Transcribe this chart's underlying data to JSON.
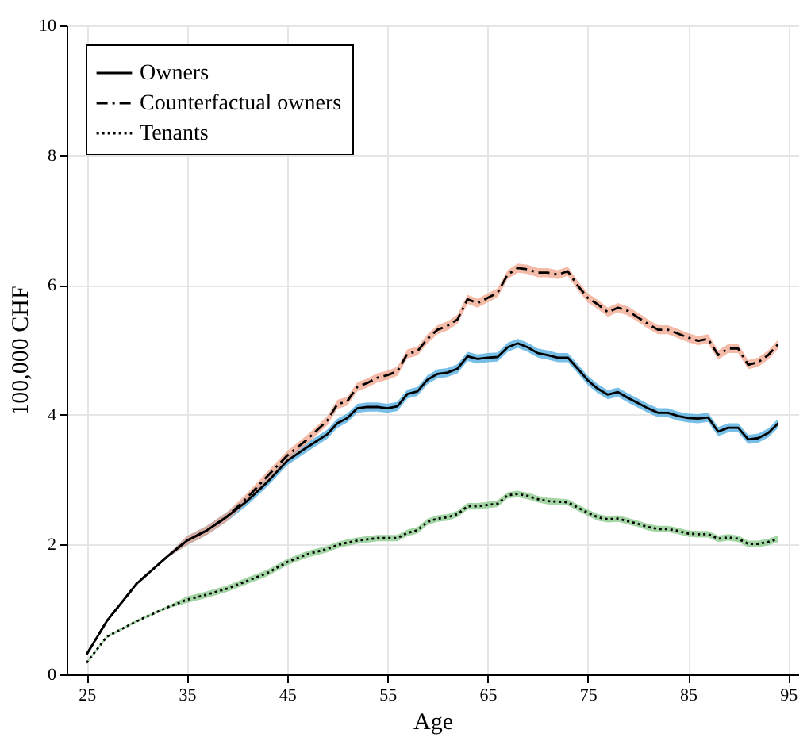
{
  "chart_data": {
    "type": "line",
    "xlabel": "Age",
    "ylabel": "100,000 CHF",
    "x": [
      25,
      27,
      30,
      33,
      35,
      37,
      39,
      41,
      43,
      45,
      47,
      49,
      50,
      51,
      52,
      53,
      54,
      55,
      56,
      57,
      58,
      59,
      60,
      61,
      62,
      63,
      64,
      65,
      66,
      67,
      68,
      69,
      70,
      71,
      72,
      73,
      74,
      75,
      76,
      77,
      78,
      79,
      80,
      81,
      82,
      83,
      84,
      85,
      86,
      87,
      88,
      89,
      90,
      91,
      92,
      93,
      94
    ],
    "xlim": [
      23,
      96
    ],
    "xticks": [
      25,
      35,
      45,
      55,
      65,
      75,
      85,
      95
    ],
    "ylim": [
      0,
      10
    ],
    "yticks": [
      0,
      2,
      4,
      6,
      8,
      10
    ],
    "grid": true,
    "legend": "top left",
    "series": [
      {
        "name": "Owners",
        "color": "#000000",
        "line_style": "solid",
        "values": [
          0.31,
          0.82,
          1.4,
          1.81,
          2.06,
          2.22,
          2.43,
          2.67,
          2.96,
          3.29,
          3.5,
          3.7,
          3.87,
          3.95,
          4.1,
          4.12,
          4.12,
          4.1,
          4.13,
          4.32,
          4.36,
          4.54,
          4.63,
          4.65,
          4.71,
          4.9,
          4.86,
          4.88,
          4.89,
          5.04,
          5.1,
          5.04,
          4.95,
          4.92,
          4.88,
          4.88,
          4.71,
          4.53,
          4.4,
          4.31,
          4.35,
          4.26,
          4.18,
          4.1,
          4.03,
          4.03,
          3.98,
          3.95,
          3.94,
          3.96,
          3.74,
          3.8,
          3.8,
          3.62,
          3.64,
          3.72,
          3.87
        ],
        "lower": [
          0.29,
          0.8,
          1.38,
          1.79,
          1.99,
          2.15,
          2.36,
          2.6,
          2.89,
          3.22,
          3.43,
          3.63,
          3.8,
          3.88,
          4.03,
          4.05,
          4.05,
          4.03,
          4.06,
          4.25,
          4.29,
          4.47,
          4.56,
          4.58,
          4.64,
          4.83,
          4.79,
          4.81,
          4.82,
          4.97,
          5.03,
          4.97,
          4.88,
          4.85,
          4.81,
          4.81,
          4.64,
          4.46,
          4.33,
          4.24,
          4.28,
          4.19,
          4.11,
          4.03,
          3.96,
          3.96,
          3.91,
          3.88,
          3.87,
          3.89,
          3.67,
          3.73,
          3.73,
          3.55,
          3.57,
          3.65,
          3.8
        ],
        "upper": [
          0.33,
          0.84,
          1.42,
          1.83,
          2.13,
          2.29,
          2.5,
          2.74,
          3.03,
          3.36,
          3.57,
          3.77,
          3.94,
          4.02,
          4.17,
          4.19,
          4.19,
          4.17,
          4.2,
          4.39,
          4.43,
          4.61,
          4.7,
          4.72,
          4.78,
          4.97,
          4.93,
          4.95,
          4.96,
          5.11,
          5.17,
          5.11,
          5.02,
          4.99,
          4.95,
          4.95,
          4.78,
          4.6,
          4.47,
          4.38,
          4.42,
          4.33,
          4.25,
          4.17,
          4.1,
          4.1,
          4.05,
          4.02,
          4.01,
          4.03,
          3.81,
          3.87,
          3.87,
          3.69,
          3.71,
          3.79,
          3.94
        ]
      },
      {
        "name": "Counterfactual owners",
        "color": "#000000",
        "line_style": "dashdot",
        "values": [
          0.31,
          0.82,
          1.4,
          1.81,
          2.06,
          2.22,
          2.43,
          2.72,
          3.05,
          3.37,
          3.62,
          3.91,
          4.16,
          4.21,
          4.43,
          4.49,
          4.57,
          4.61,
          4.67,
          4.94,
          4.98,
          5.17,
          5.31,
          5.37,
          5.47,
          5.78,
          5.72,
          5.8,
          5.88,
          6.16,
          6.26,
          6.24,
          6.19,
          6.19,
          6.16,
          6.21,
          5.99,
          5.8,
          5.7,
          5.58,
          5.65,
          5.6,
          5.5,
          5.4,
          5.31,
          5.31,
          5.25,
          5.19,
          5.14,
          5.17,
          4.92,
          5.02,
          5.02,
          4.77,
          4.81,
          4.92,
          5.09
        ],
        "lower": [
          0.29,
          0.8,
          1.38,
          1.79,
          1.99,
          2.15,
          2.36,
          2.65,
          2.98,
          3.3,
          3.55,
          3.84,
          4.09,
          4.14,
          4.36,
          4.42,
          4.5,
          4.54,
          4.6,
          4.87,
          4.91,
          5.1,
          5.24,
          5.3,
          5.4,
          5.71,
          5.65,
          5.73,
          5.81,
          6.09,
          6.19,
          6.17,
          6.12,
          6.12,
          6.09,
          6.14,
          5.92,
          5.73,
          5.63,
          5.51,
          5.58,
          5.53,
          5.43,
          5.33,
          5.24,
          5.24,
          5.18,
          5.12,
          5.07,
          5.1,
          4.85,
          4.95,
          4.95,
          4.7,
          4.74,
          4.85,
          5.02
        ],
        "upper": [
          0.33,
          0.84,
          1.42,
          1.83,
          2.13,
          2.29,
          2.5,
          2.79,
          3.12,
          3.44,
          3.69,
          3.98,
          4.23,
          4.28,
          4.5,
          4.56,
          4.64,
          4.68,
          4.74,
          5.01,
          5.05,
          5.24,
          5.38,
          5.44,
          5.54,
          5.85,
          5.79,
          5.87,
          5.95,
          6.23,
          6.33,
          6.31,
          6.26,
          6.26,
          6.23,
          6.28,
          6.06,
          5.87,
          5.77,
          5.65,
          5.72,
          5.67,
          5.57,
          5.47,
          5.38,
          5.38,
          5.32,
          5.26,
          5.21,
          5.24,
          4.99,
          5.09,
          5.09,
          4.84,
          4.88,
          4.99,
          5.16
        ]
      },
      {
        "name": "Tenants",
        "color": "#000000",
        "line_style": "dotted",
        "values": [
          0.18,
          0.58,
          0.82,
          1.03,
          1.15,
          1.23,
          1.32,
          1.44,
          1.56,
          1.73,
          1.85,
          1.93,
          1.99,
          2.03,
          2.06,
          2.08,
          2.1,
          2.1,
          2.1,
          2.18,
          2.22,
          2.35,
          2.4,
          2.42,
          2.47,
          2.59,
          2.59,
          2.61,
          2.63,
          2.76,
          2.78,
          2.75,
          2.7,
          2.67,
          2.66,
          2.65,
          2.57,
          2.49,
          2.42,
          2.39,
          2.4,
          2.36,
          2.32,
          2.27,
          2.24,
          2.24,
          2.21,
          2.17,
          2.16,
          2.16,
          2.09,
          2.11,
          2.09,
          2.01,
          2.01,
          2.04,
          2.09
        ],
        "lower": [
          0.16,
          0.56,
          0.8,
          1.01,
          1.1,
          1.18,
          1.27,
          1.39,
          1.51,
          1.68,
          1.8,
          1.88,
          1.94,
          1.98,
          2.01,
          2.03,
          2.05,
          2.05,
          2.05,
          2.13,
          2.17,
          2.3,
          2.35,
          2.37,
          2.42,
          2.54,
          2.54,
          2.56,
          2.58,
          2.71,
          2.73,
          2.7,
          2.65,
          2.62,
          2.61,
          2.6,
          2.52,
          2.44,
          2.37,
          2.34,
          2.35,
          2.31,
          2.27,
          2.22,
          2.19,
          2.19,
          2.16,
          2.12,
          2.11,
          2.11,
          2.04,
          2.06,
          2.04,
          1.96,
          1.96,
          1.99,
          2.04
        ],
        "upper": [
          0.2,
          0.6,
          0.84,
          1.05,
          1.2,
          1.28,
          1.37,
          1.49,
          1.61,
          1.78,
          1.9,
          1.98,
          2.04,
          2.08,
          2.11,
          2.13,
          2.15,
          2.15,
          2.15,
          2.23,
          2.27,
          2.4,
          2.45,
          2.47,
          2.52,
          2.64,
          2.64,
          2.66,
          2.68,
          2.81,
          2.83,
          2.8,
          2.75,
          2.72,
          2.71,
          2.7,
          2.62,
          2.54,
          2.47,
          2.44,
          2.45,
          2.41,
          2.37,
          2.32,
          2.29,
          2.29,
          2.26,
          2.22,
          2.21,
          2.21,
          2.14,
          2.16,
          2.14,
          2.06,
          2.06,
          2.09,
          2.14
        ]
      }
    ]
  }
}
